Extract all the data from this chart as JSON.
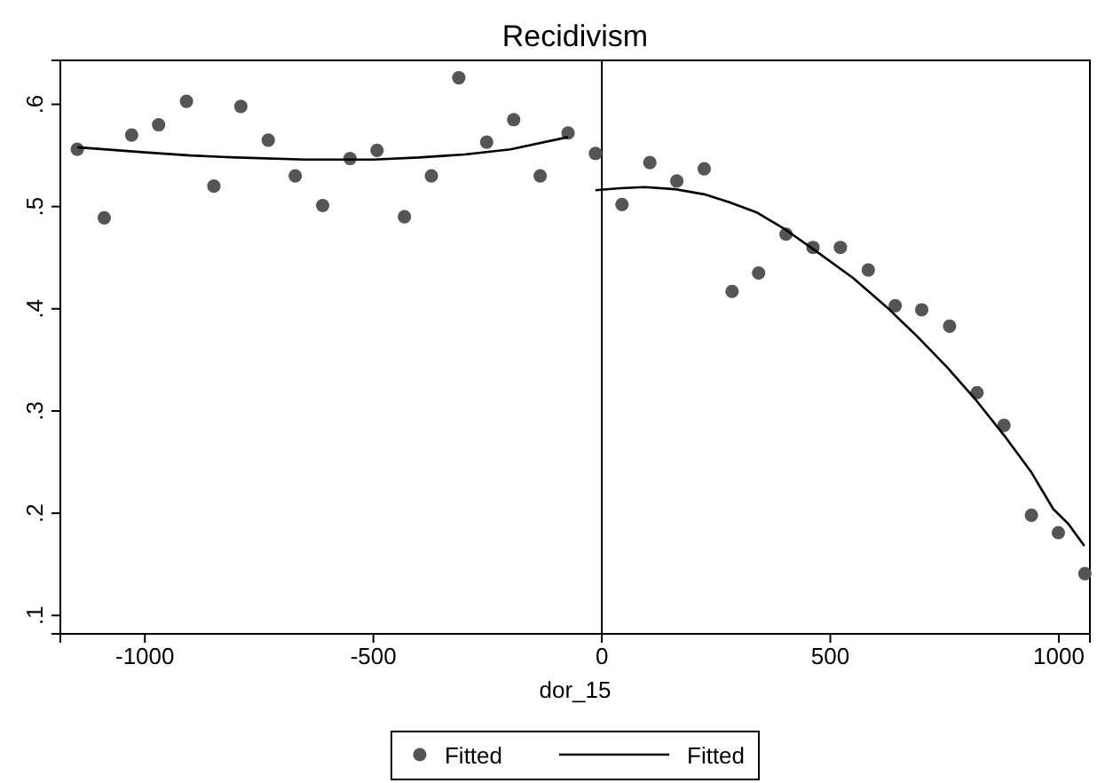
{
  "chart_data": {
    "type": "scatter",
    "title": "Recidivism",
    "xlabel": "dor_15",
    "xlim": [
      -1185,
      1068
    ],
    "ylim": [
      0.082,
      0.643
    ],
    "xticks": [
      -1000,
      -500,
      0,
      500,
      1000
    ],
    "yticks": [
      {
        "value": 0.1,
        "label": ".1"
      },
      {
        "value": 0.2,
        "label": ".2"
      },
      {
        "value": 0.3,
        "label": ".3"
      },
      {
        "value": 0.4,
        "label": ".4"
      },
      {
        "value": 0.5,
        "label": ".5"
      },
      {
        "value": 0.6,
        "label": ".6"
      }
    ],
    "grid": false,
    "legend": "bottom",
    "ref_lines": [
      {
        "axis": "x",
        "value": 0,
        "color": "#000000"
      }
    ],
    "series": [
      {
        "name": "Fitted",
        "marker": "circle",
        "color": "#555555",
        "x": [
          -1148,
          -1089,
          -1029,
          -970,
          -909,
          -849,
          -790,
          -730,
          -671,
          -611,
          -551,
          -492,
          -432,
          -373,
          -313,
          -252,
          -193,
          -135,
          -74,
          -14,
          44,
          105,
          164,
          224,
          285,
          343,
          403,
          462,
          522,
          583,
          642,
          700,
          761,
          821,
          880,
          940,
          999,
          1057
        ],
        "values": [
          0.556,
          0.489,
          0.57,
          0.58,
          0.603,
          0.52,
          0.598,
          0.565,
          0.53,
          0.501,
          0.547,
          0.555,
          0.49,
          0.53,
          0.626,
          0.563,
          0.585,
          0.53,
          0.572,
          0.552,
          0.502,
          0.543,
          0.525,
          0.537,
          0.417,
          0.435,
          0.473,
          0.46,
          0.46,
          0.438,
          0.403,
          0.399,
          0.383,
          0.318,
          0.286,
          0.198,
          0.181,
          0.141
        ]
      },
      {
        "name": "Fitted",
        "type": "line",
        "marker": "none",
        "line_style": "solid",
        "color": "#000000",
        "x": [
          -1148,
          -1000,
          -900,
          -800,
          -650,
          -500,
          -400,
          -300,
          -200,
          -74
        ],
        "values": [
          0.558,
          0.553,
          0.55,
          0.548,
          0.546,
          0.546,
          0.548,
          0.551,
          0.556,
          0.568
        ]
      },
      {
        "type": "line",
        "marker": "none",
        "line_style": "solid",
        "color": "#000000",
        "x": [
          -14,
          40,
          94,
          160,
          224,
          280,
          340,
          400,
          470,
          550,
          625,
          690,
          755,
          820,
          884,
          940,
          988,
          1020,
          1056
        ],
        "values": [
          0.516,
          0.518,
          0.519,
          0.517,
          0.512,
          0.504,
          0.494,
          0.478,
          0.456,
          0.43,
          0.401,
          0.373,
          0.343,
          0.31,
          0.274,
          0.24,
          0.204,
          0.19,
          0.168
        ]
      }
    ]
  }
}
